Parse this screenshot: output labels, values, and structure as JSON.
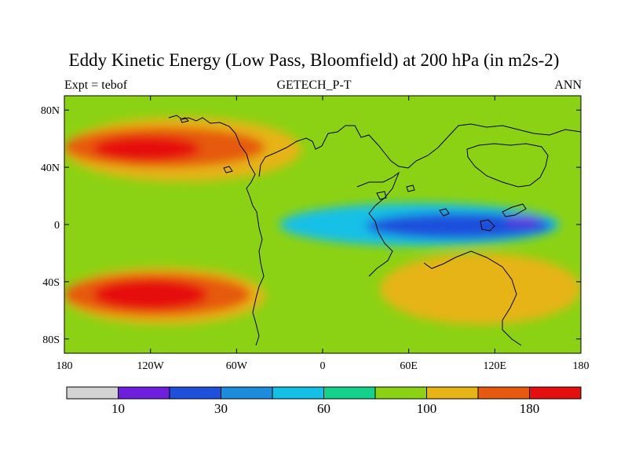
{
  "title": "Eddy Kinetic Energy (Low Pass, Bloomfield) at 200 hPa (in m2s-2)",
  "subtitle_left": "Expt = tebof",
  "subtitle_center": "GETECH_P-T",
  "subtitle_right": "ANN",
  "axes": {
    "lon_labels": [
      "180",
      "120W",
      "60W",
      "0",
      "60E",
      "120E",
      "180"
    ],
    "lon_values": [
      -180,
      -120,
      -60,
      0,
      60,
      120,
      180
    ],
    "lat_labels": [
      "80N",
      "40N",
      "0",
      "40S",
      "80S"
    ],
    "lat_values": [
      80,
      40,
      0,
      -40,
      -80
    ],
    "lon_range": [
      -180,
      180
    ],
    "lat_range": [
      -90,
      90
    ]
  },
  "colorbar": {
    "colors": [
      "#d3d3d3",
      "#6e1fdc",
      "#1e50dc",
      "#1e8cdc",
      "#14c0e6",
      "#14d28c",
      "#8cd214",
      "#e6b414",
      "#e65a0f",
      "#e60f0f"
    ],
    "labels": [
      "10",
      "30",
      "60",
      "100",
      "180"
    ],
    "label_after_box": [
      1,
      3,
      5,
      7,
      9
    ]
  },
  "field": {
    "units": "m2s-2",
    "background_level": 6,
    "regions": [
      {
        "name": "north-pacific-band",
        "level": 7,
        "lon": [
          -180,
          -15
        ],
        "lat": [
          30,
          75
        ]
      },
      {
        "name": "north-pacific-band-core",
        "level": 8,
        "lon": [
          -180,
          -40
        ],
        "lat": [
          40,
          68
        ]
      },
      {
        "name": "north-pacific-jet",
        "level": 9,
        "lon": [
          -160,
          -85
        ],
        "lat": [
          44,
          62
        ]
      },
      {
        "name": "south-pacific-band",
        "level": 7,
        "lon": [
          -180,
          -40
        ],
        "lat": [
          -70,
          -30
        ]
      },
      {
        "name": "south-pacific-band-core",
        "level": 8,
        "lon": [
          -180,
          -50
        ],
        "lat": [
          -64,
          -34
        ]
      },
      {
        "name": "south-pacific-jet",
        "level": 9,
        "lon": [
          -160,
          -80
        ],
        "lat": [
          -60,
          -38
        ]
      },
      {
        "name": "equatorial-low",
        "level": 4,
        "lon": [
          -30,
          165
        ],
        "lat": [
          -15,
          15
        ]
      },
      {
        "name": "equatorial-low-core",
        "level": 2,
        "lon": [
          30,
          160
        ],
        "lat": [
          -10,
          8
        ]
      },
      {
        "name": "equatorial-min",
        "level": 1,
        "lon": [
          128,
          152
        ],
        "lat": [
          0,
          6
        ]
      },
      {
        "name": "southern-warm-band",
        "level": 7,
        "lon": [
          40,
          180
        ],
        "lat": [
          -70,
          -20
        ]
      }
    ]
  }
}
